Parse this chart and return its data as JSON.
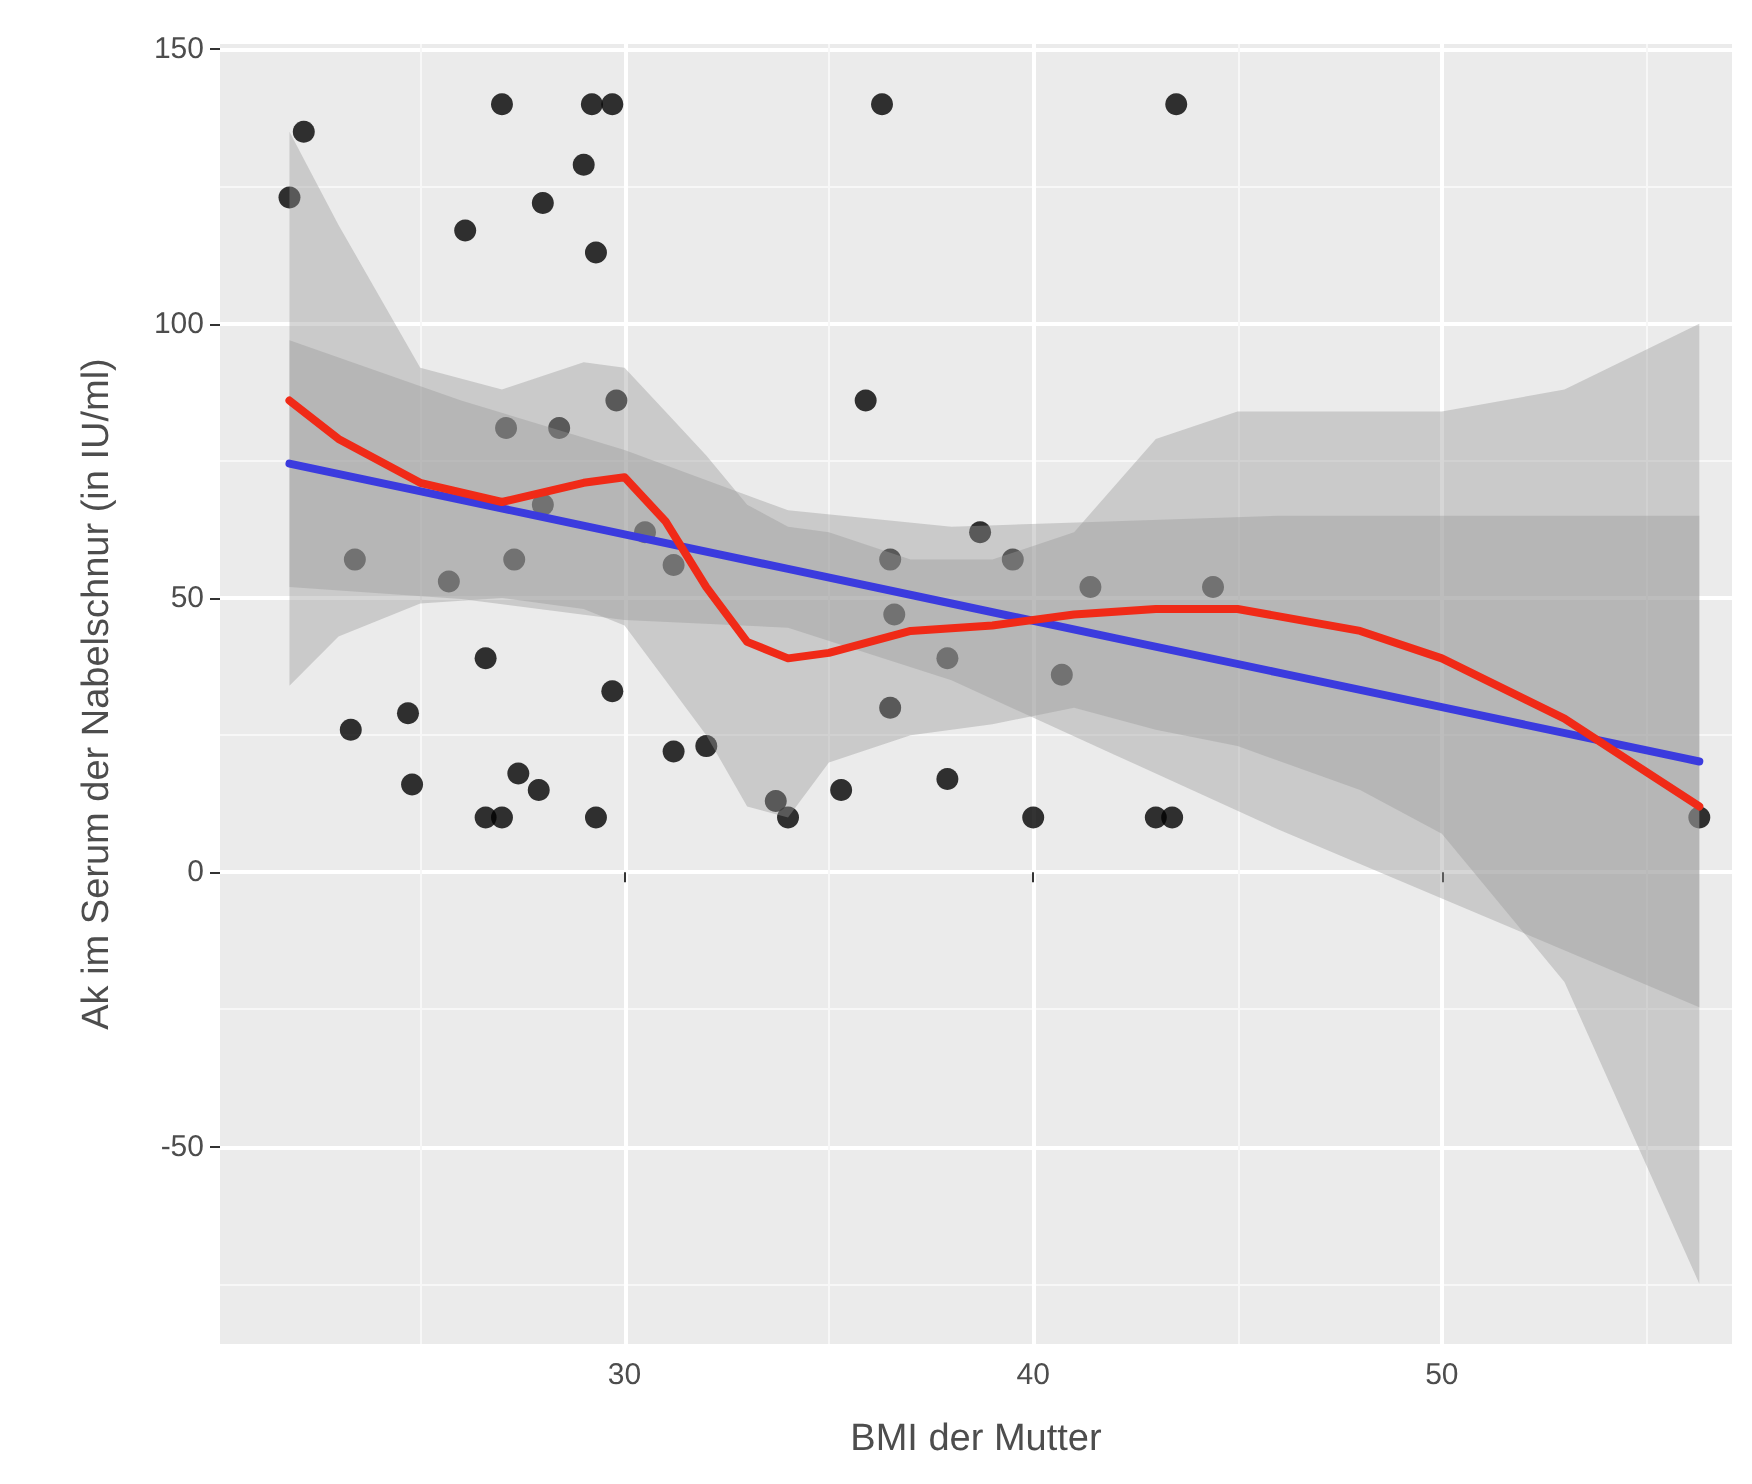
{
  "chart_data": {
    "type": "scatter",
    "xlabel": "BMI der Mutter",
    "ylabel": "Ak im Serum der Nabelschnur (in IU/ml)",
    "xlim": [
      20.1,
      57.1
    ],
    "ylim": [
      -86,
      151
    ],
    "xticks": [
      30,
      40,
      50
    ],
    "yticks": [
      -50,
      0,
      50,
      100,
      150
    ],
    "grid": true,
    "series": [
      {
        "marker": "circle",
        "color": "#000000",
        "x": [
          22.15,
          21.8,
          27.0,
          29.2,
          29.7,
          36.3,
          43.5,
          29.0,
          28.0,
          26.1,
          29.3,
          29.8,
          35.9,
          27.1,
          28.4,
          28.0,
          30.5,
          31.2,
          23.4,
          25.7,
          27.3,
          36.5,
          36.6,
          37.9,
          36.5,
          26.6,
          29.7,
          23.3,
          24.7,
          24.8,
          31.2,
          32.0,
          27.4,
          27.9,
          26.6,
          27.0,
          29.3,
          33.7,
          34.0,
          35.3,
          37.9,
          38.7,
          39.5,
          41.4,
          44.4,
          40.7,
          40.0,
          43.0,
          43.4,
          56.3
        ],
        "values": [
          135,
          123,
          140,
          140,
          140,
          140,
          140,
          129,
          122,
          117,
          113,
          86,
          86,
          81,
          81,
          67,
          62,
          56,
          57,
          53,
          57,
          57,
          47,
          39,
          30,
          39,
          33,
          26,
          29,
          16,
          22,
          23,
          18,
          15,
          10,
          10,
          10,
          13,
          10,
          15,
          17,
          62,
          57,
          52,
          52,
          36,
          10,
          10,
          10,
          10
        ]
      },
      {
        "type": "line",
        "marker": "none",
        "color": "#3b3bde",
        "x": [
          21.8,
          26,
          30,
          34,
          38,
          42,
          46,
          50,
          56.3
        ],
        "values": [
          74.5,
          67.9,
          61.6,
          55.3,
          49,
          42.7,
          36.4,
          30.1,
          20.2
        ],
        "lower": [
          52,
          49.8,
          46,
          44.6,
          35,
          21.4,
          7.8,
          -4.8,
          -24.6
        ],
        "upper": [
          97,
          86,
          77,
          66,
          63,
          64,
          65,
          65,
          65
        ]
      },
      {
        "type": "line",
        "marker": "none",
        "color": "#f02a17",
        "x": [
          21.8,
          23,
          25,
          27,
          29,
          30,
          31,
          32,
          33,
          34,
          35,
          37,
          39,
          41,
          43,
          45,
          48,
          50,
          53,
          56.3
        ],
        "values": [
          86,
          79,
          71,
          67.5,
          71,
          72,
          64,
          52,
          42,
          39,
          40,
          44,
          45,
          47,
          48,
          48,
          44,
          39,
          28,
          12
        ],
        "lower": [
          34,
          43,
          49,
          50,
          48,
          45,
          35,
          25,
          12,
          10,
          20,
          25,
          27,
          30,
          26,
          23,
          15,
          7,
          -20,
          -75
        ],
        "upper": [
          135,
          118,
          92,
          88,
          93,
          92,
          84,
          76,
          67,
          63,
          62,
          57,
          57,
          62,
          79,
          84,
          84,
          84,
          88,
          100
        ]
      }
    ]
  }
}
